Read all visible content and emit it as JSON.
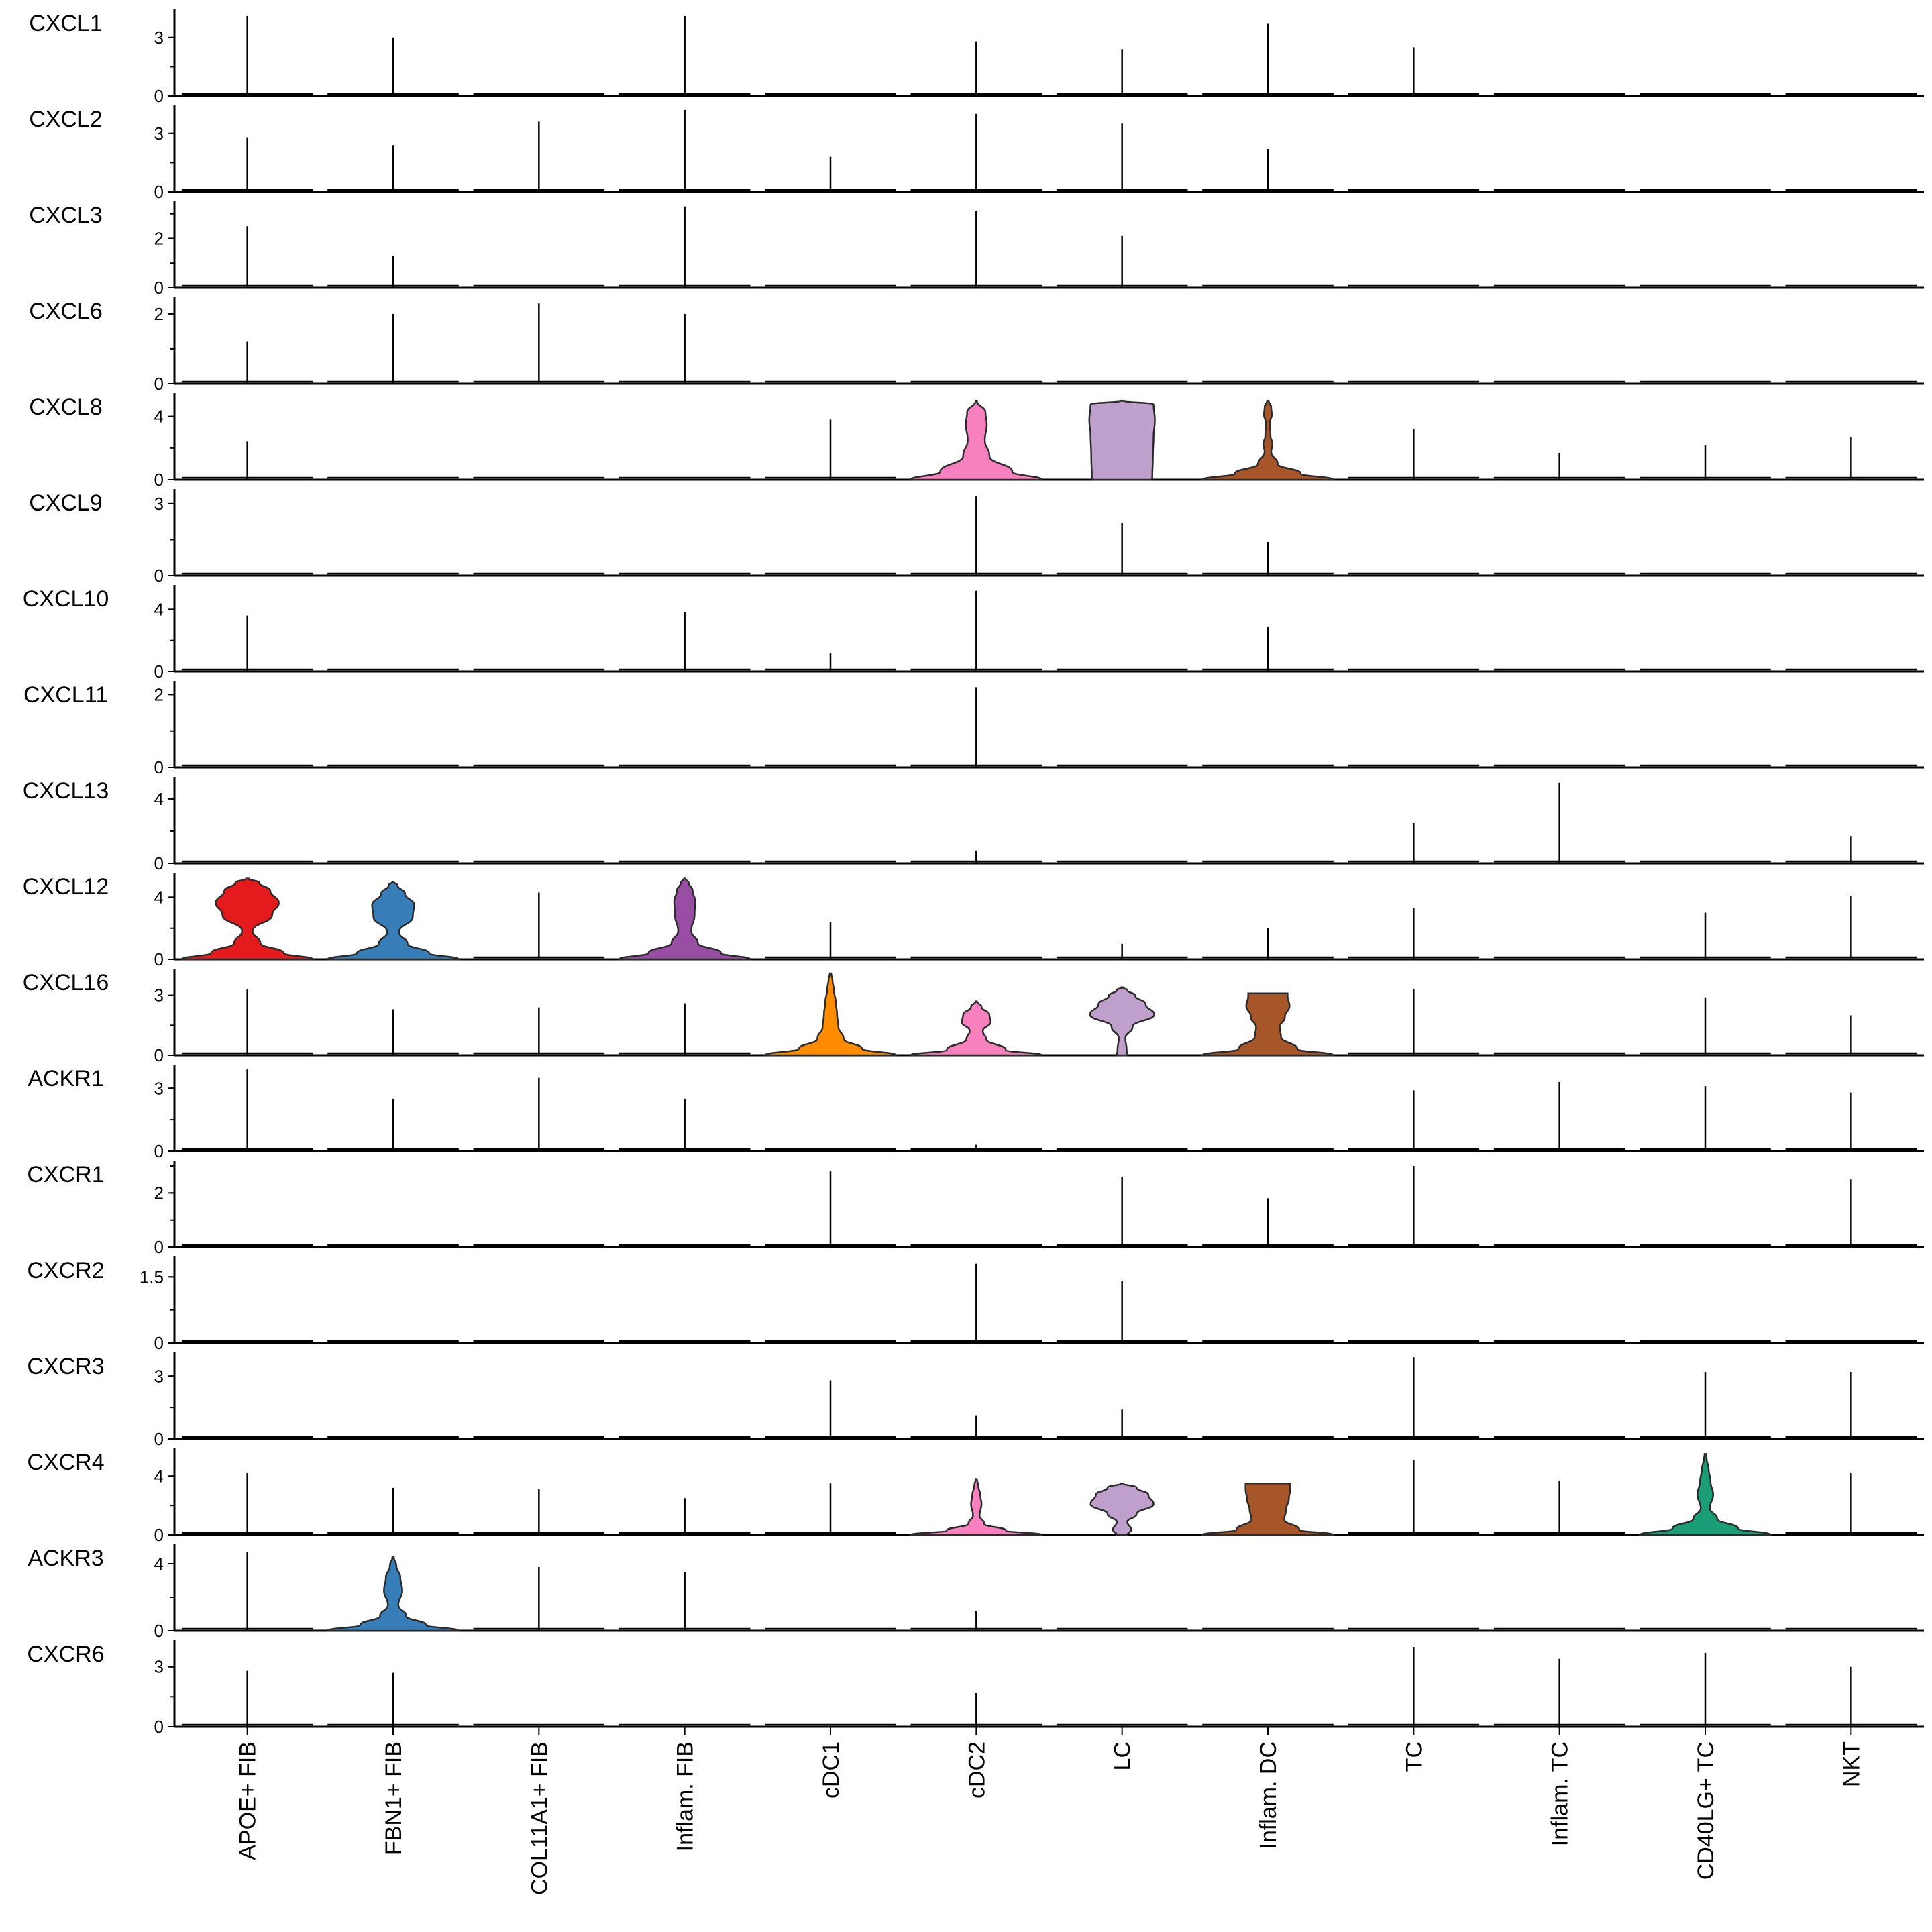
{
  "chart_data": {
    "type": "violin",
    "title": "",
    "xlabel": "",
    "ylabel": "",
    "categories": [
      "APOE+ FIB",
      "FBN1+ FIB",
      "COL11A1+ FIB",
      "Inflam. FIB",
      "cDC1",
      "cDC2",
      "LC",
      "Inflam. DC",
      "TC",
      "Inflam. TC",
      "CD40LG+ TC",
      "NKT"
    ],
    "colors": [
      "#e41a1c",
      "#377eb8",
      "#4daf4a",
      "#984ea3",
      "#ff8c00",
      "#f781bf",
      "#bfa0cc",
      "#a65628",
      "#999999",
      "#66c2a5",
      "#1b9e77",
      "#8da0cb"
    ],
    "genes": [
      {
        "name": "CXCL1",
        "ticks": [
          "0",
          "3"
        ],
        "tick_values": [
          0,
          3
        ],
        "ymax": 4.3,
        "spikes": [
          4.1,
          3.0,
          0,
          4.1,
          0,
          2.8,
          2.4,
          3.7,
          2.5,
          0,
          0,
          0
        ],
        "violins": []
      },
      {
        "name": "CXCL2",
        "ticks": [
          "0",
          "3"
        ],
        "tick_values": [
          0,
          3
        ],
        "ymax": 4.3,
        "spikes": [
          2.8,
          2.4,
          3.6,
          4.2,
          1.8,
          4.0,
          3.5,
          2.2,
          0,
          0,
          0,
          0
        ],
        "violins": []
      },
      {
        "name": "CXCL3",
        "ticks": [
          "0",
          "2"
        ],
        "tick_values": [
          0,
          2
        ],
        "ymax": 3.4,
        "spikes": [
          2.5,
          1.3,
          0,
          3.3,
          0,
          3.1,
          2.1,
          0,
          0,
          0,
          0,
          0
        ],
        "violins": []
      },
      {
        "name": "CXCL6",
        "ticks": [
          "0",
          "2"
        ],
        "tick_values": [
          0,
          2
        ],
        "ymax": 2.4,
        "spikes": [
          1.2,
          2.0,
          2.3,
          2.0,
          0,
          0,
          0,
          0,
          0,
          0,
          0,
          0
        ],
        "violins": []
      },
      {
        "name": "CXCL8",
        "ticks": [
          "0",
          "4"
        ],
        "tick_values": [
          0,
          4
        ],
        "ymax": 5.3,
        "spikes": [
          2.4,
          0,
          0,
          0,
          3.8,
          0,
          0,
          0,
          3.2,
          1.7,
          2.2,
          2.7
        ],
        "violins": [
          {
            "index": 5,
            "top": 5.0,
            "profile": [
              [
                0,
                1.0
              ],
              [
                0.1,
                0.55
              ],
              [
                0.3,
                0.2
              ],
              [
                0.5,
                0.13
              ],
              [
                0.7,
                0.16
              ],
              [
                0.85,
                0.14
              ],
              [
                1,
                0.01
              ]
            ]
          },
          {
            "index": 6,
            "top": 5.0,
            "profile": [
              [
                0,
                0.45
              ],
              [
                0.02,
                0.46
              ],
              [
                0.3,
                0.47
              ],
              [
                0.55,
                0.48
              ],
              [
                0.75,
                0.5
              ],
              [
                0.95,
                0.48
              ],
              [
                1,
                0.01
              ]
            ]
          },
          {
            "index": 7,
            "top": 5.0,
            "profile": [
              [
                0,
                1.0
              ],
              [
                0.08,
                0.5
              ],
              [
                0.2,
                0.15
              ],
              [
                0.35,
                0.05
              ],
              [
                0.45,
                0.07
              ],
              [
                0.55,
                0.04
              ],
              [
                0.72,
                0.03
              ],
              [
                0.82,
                0.06
              ],
              [
                0.92,
                0.05
              ],
              [
                1,
                0.01
              ]
            ]
          }
        ]
      },
      {
        "name": "CXCL9",
        "ticks": [
          "0",
          "3"
        ],
        "tick_values": [
          0,
          3
        ],
        "ymax": 3.5,
        "spikes": [
          0,
          0,
          0,
          0,
          0,
          3.3,
          2.2,
          1.4,
          0,
          0,
          0,
          0
        ],
        "violins": []
      },
      {
        "name": "CXCL10",
        "ticks": [
          "0",
          "4"
        ],
        "tick_values": [
          0,
          4
        ],
        "ymax": 5.4,
        "spikes": [
          3.6,
          0,
          0,
          3.8,
          1.2,
          5.2,
          0,
          2.9,
          0,
          0,
          0,
          0
        ],
        "violins": []
      },
      {
        "name": "CXCL11",
        "ticks": [
          "0",
          "2"
        ],
        "tick_values": [
          0,
          2
        ],
        "ymax": 2.3,
        "spikes": [
          0,
          0,
          0,
          0,
          0,
          2.2,
          0,
          0,
          0,
          0,
          0,
          0
        ],
        "violins": []
      },
      {
        "name": "CXCL13",
        "ticks": [
          "0",
          "4"
        ],
        "tick_values": [
          0,
          4
        ],
        "ymax": 5.2,
        "spikes": [
          0,
          0,
          0,
          0,
          0,
          0.8,
          0,
          0,
          2.5,
          5.0,
          0,
          1.7
        ],
        "violins": []
      },
      {
        "name": "CXCL12",
        "ticks": [
          "0",
          "4"
        ],
        "tick_values": [
          0,
          4
        ],
        "ymax": 5.4,
        "spikes": [
          0,
          0,
          4.3,
          0,
          2.4,
          0,
          1.0,
          2.0,
          3.3,
          0,
          3.0,
          4.1
        ],
        "violins": [
          {
            "index": 0,
            "top": 5.2,
            "profile": [
              [
                0,
                1.0
              ],
              [
                0.08,
                0.55
              ],
              [
                0.2,
                0.2
              ],
              [
                0.35,
                0.08
              ],
              [
                0.55,
                0.38
              ],
              [
                0.7,
                0.48
              ],
              [
                0.85,
                0.35
              ],
              [
                0.95,
                0.18
              ],
              [
                1,
                0.02
              ]
            ]
          },
          {
            "index": 1,
            "top": 5.0,
            "profile": [
              [
                0,
                1.0
              ],
              [
                0.08,
                0.55
              ],
              [
                0.2,
                0.22
              ],
              [
                0.35,
                0.09
              ],
              [
                0.55,
                0.3
              ],
              [
                0.7,
                0.32
              ],
              [
                0.85,
                0.18
              ],
              [
                0.95,
                0.07
              ],
              [
                1,
                0.01
              ]
            ]
          },
          {
            "index": 3,
            "top": 5.2,
            "profile": [
              [
                0,
                1.0
              ],
              [
                0.08,
                0.55
              ],
              [
                0.2,
                0.2
              ],
              [
                0.35,
                0.1
              ],
              [
                0.55,
                0.15
              ],
              [
                0.72,
                0.16
              ],
              [
                0.85,
                0.12
              ],
              [
                0.95,
                0.06
              ],
              [
                1,
                0.01
              ]
            ]
          }
        ]
      },
      {
        "name": "CXCL16",
        "ticks": [
          "0",
          "3"
        ],
        "tick_values": [
          0,
          3
        ],
        "ymax": 4.2,
        "spikes": [
          3.3,
          2.3,
          2.4,
          2.6,
          0,
          0,
          0,
          0,
          3.3,
          0,
          2.9,
          2.0
        ],
        "violins": [
          {
            "index": 4,
            "top": 4.1,
            "profile": [
              [
                0,
                1.0
              ],
              [
                0.08,
                0.48
              ],
              [
                0.2,
                0.2
              ],
              [
                0.35,
                0.12
              ],
              [
                0.5,
                0.1
              ],
              [
                0.65,
                0.08
              ],
              [
                0.8,
                0.05
              ],
              [
                0.92,
                0.03
              ],
              [
                1,
                0.01
              ]
            ]
          },
          {
            "index": 5,
            "top": 2.7,
            "profile": [
              [
                0,
                1.0
              ],
              [
                0.1,
                0.45
              ],
              [
                0.3,
                0.15
              ],
              [
                0.45,
                0.1
              ],
              [
                0.62,
                0.22
              ],
              [
                0.75,
                0.2
              ],
              [
                0.9,
                0.08
              ],
              [
                1,
                0.01
              ]
            ]
          },
          {
            "index": 6,
            "top": 3.4,
            "profile": [
              [
                0,
                0.08
              ],
              [
                0.08,
                0.07
              ],
              [
                0.25,
                0.05
              ],
              [
                0.42,
                0.16
              ],
              [
                0.6,
                0.49
              ],
              [
                0.75,
                0.36
              ],
              [
                0.88,
                0.2
              ],
              [
                0.96,
                0.08
              ],
              [
                1,
                0.01
              ]
            ]
          },
          {
            "index": 7,
            "top": 3.1,
            "profile": [
              [
                0,
                1.0
              ],
              [
                0.1,
                0.45
              ],
              [
                0.3,
                0.2
              ],
              [
                0.45,
                0.18
              ],
              [
                0.62,
                0.26
              ],
              [
                0.8,
                0.33
              ],
              [
                0.95,
                0.3
              ],
              [
                1,
                0.3
              ]
            ]
          }
        ]
      },
      {
        "name": "ACKR1",
        "ticks": [
          "0",
          "3"
        ],
        "tick_values": [
          0,
          3
        ],
        "ymax": 4.0,
        "spikes": [
          3.9,
          2.5,
          3.5,
          2.5,
          0,
          0.3,
          0,
          0,
          2.9,
          3.3,
          3.1,
          2.8
        ],
        "violins": []
      },
      {
        "name": "CXCR1",
        "ticks": [
          "0",
          "2"
        ],
        "tick_values": [
          0,
          2
        ],
        "ymax": 3.1,
        "spikes": [
          0,
          0,
          0,
          0,
          2.8,
          0,
          2.6,
          1.8,
          3.0,
          0,
          0,
          2.5
        ],
        "violins": []
      },
      {
        "name": "CXCR2",
        "ticks": [
          "0",
          "1.5"
        ],
        "tick_values": [
          0,
          1.5
        ],
        "ymax": 1.9,
        "spikes": [
          0,
          0,
          0,
          0,
          0,
          1.8,
          1.4,
          0,
          0,
          0,
          0,
          0
        ],
        "violins": []
      },
      {
        "name": "CXCR3",
        "ticks": [
          "0",
          "3"
        ],
        "tick_values": [
          0,
          3
        ],
        "ymax": 4.0,
        "spikes": [
          0,
          0,
          0,
          0,
          2.8,
          1.1,
          1.4,
          0,
          3.9,
          0,
          3.2,
          3.2
        ],
        "violins": []
      },
      {
        "name": "CXCR4",
        "ticks": [
          "0",
          "4"
        ],
        "tick_values": [
          0,
          4
        ],
        "ymax": 5.7,
        "spikes": [
          4.2,
          3.2,
          3.1,
          2.5,
          3.5,
          0,
          0,
          0,
          5.1,
          3.7,
          0,
          4.2
        ],
        "violins": [
          {
            "index": 5,
            "top": 3.8,
            "profile": [
              [
                0,
                1.0
              ],
              [
                0.08,
                0.45
              ],
              [
                0.2,
                0.12
              ],
              [
                0.35,
                0.05
              ],
              [
                0.55,
                0.08
              ],
              [
                0.72,
                0.06
              ],
              [
                0.88,
                0.03
              ],
              [
                1,
                0.01
              ]
            ]
          },
          {
            "index": 6,
            "top": 3.5,
            "profile": [
              [
                0,
                0.08
              ],
              [
                0.1,
                0.14
              ],
              [
                0.25,
                0.08
              ],
              [
                0.4,
                0.22
              ],
              [
                0.6,
                0.48
              ],
              [
                0.78,
                0.4
              ],
              [
                0.92,
                0.22
              ],
              [
                1,
                0.02
              ]
            ]
          },
          {
            "index": 7,
            "top": 3.5,
            "profile": [
              [
                0,
                1.0
              ],
              [
                0.1,
                0.48
              ],
              [
                0.3,
                0.25
              ],
              [
                0.5,
                0.28
              ],
              [
                0.7,
                0.32
              ],
              [
                0.88,
                0.34
              ],
              [
                1,
                0.34
              ]
            ]
          },
          {
            "index": 10,
            "top": 5.5,
            "profile": [
              [
                0,
                1.0
              ],
              [
                0.08,
                0.5
              ],
              [
                0.2,
                0.18
              ],
              [
                0.33,
                0.07
              ],
              [
                0.5,
                0.12
              ],
              [
                0.66,
                0.08
              ],
              [
                0.82,
                0.05
              ],
              [
                0.94,
                0.02
              ],
              [
                1,
                0.01
              ]
            ]
          }
        ]
      },
      {
        "name": "ACKR3",
        "ticks": [
          "0",
          "4"
        ],
        "tick_values": [
          0,
          4
        ],
        "ymax": 5.0,
        "spikes": [
          4.7,
          0,
          3.8,
          3.5,
          0,
          1.2,
          0,
          0,
          0,
          0,
          0,
          0
        ],
        "violins": [
          {
            "index": 1,
            "top": 4.4,
            "profile": [
              [
                0,
                1.0
              ],
              [
                0.08,
                0.5
              ],
              [
                0.2,
                0.2
              ],
              [
                0.35,
                0.08
              ],
              [
                0.55,
                0.14
              ],
              [
                0.72,
                0.11
              ],
              [
                0.88,
                0.05
              ],
              [
                1,
                0.01
              ]
            ]
          }
        ]
      },
      {
        "name": "CXCR6",
        "ticks": [
          "0",
          "3"
        ],
        "tick_values": [
          0,
          3
        ],
        "ymax": 4.2,
        "spikes": [
          2.8,
          2.7,
          0,
          0,
          0,
          1.7,
          0,
          0,
          4.0,
          3.4,
          3.7,
          3.0
        ],
        "violins": []
      }
    ]
  }
}
